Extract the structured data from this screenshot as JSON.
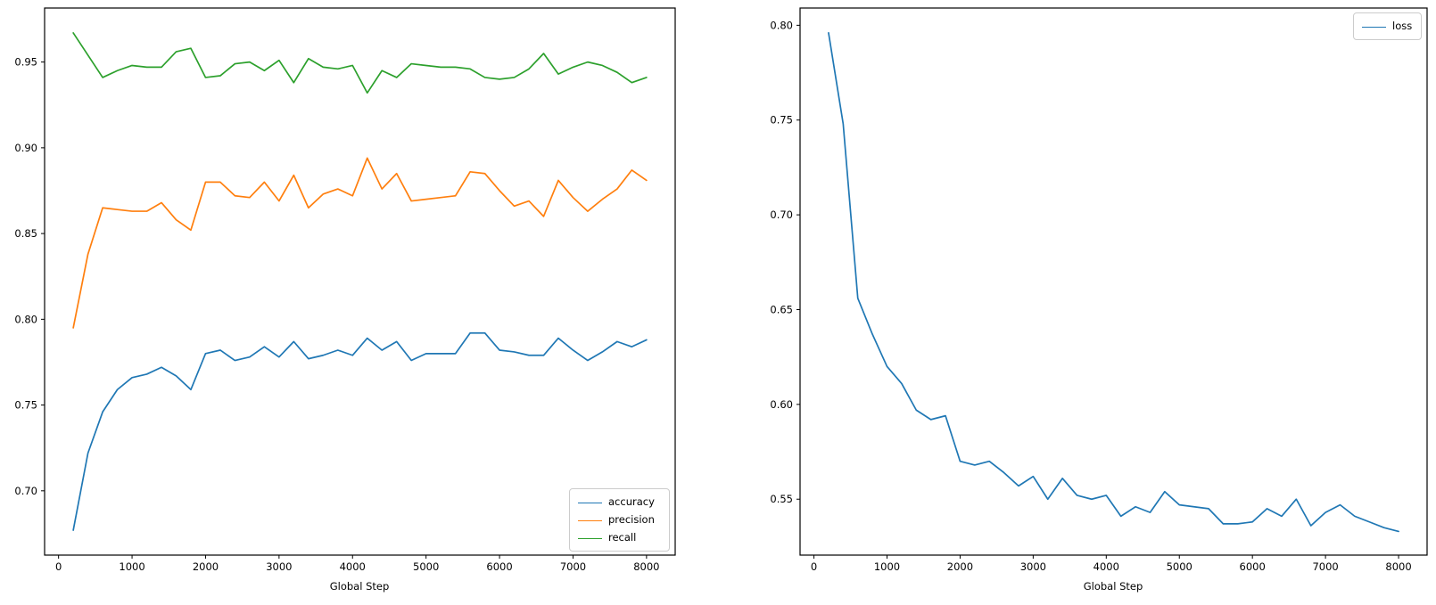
{
  "chart_data": [
    {
      "id": "metrics",
      "type": "line",
      "title": "",
      "xlabel": "Global Step",
      "ylabel": "",
      "grid": false,
      "legend_position": "lower-right",
      "xlim": [
        -190,
        8390
      ],
      "ylim": [
        0.6625,
        0.9815
      ],
      "x_ticks": [
        0,
        1000,
        2000,
        3000,
        4000,
        5000,
        6000,
        7000,
        8000
      ],
      "x_tick_labels": [
        "0",
        "1000",
        "2000",
        "3000",
        "4000",
        "5000",
        "6000",
        "7000",
        "8000"
      ],
      "y_ticks": [
        0.7,
        0.75,
        0.8,
        0.85,
        0.9,
        0.95
      ],
      "y_tick_labels": [
        "0.70",
        "0.75",
        "0.80",
        "0.85",
        "0.90",
        "0.95"
      ],
      "x": [
        200,
        400,
        600,
        800,
        1000,
        1200,
        1400,
        1600,
        1800,
        2000,
        2200,
        2400,
        2600,
        2800,
        3000,
        3200,
        3400,
        3600,
        3800,
        4000,
        4200,
        4400,
        4600,
        4800,
        5000,
        5200,
        5400,
        5600,
        5800,
        6000,
        6200,
        6400,
        6600,
        6800,
        7000,
        7200,
        7400,
        7600,
        7800,
        8000
      ],
      "series": [
        {
          "name": "accuracy",
          "color": "#1f77b4",
          "values": [
            0.677,
            0.722,
            0.746,
            0.759,
            0.766,
            0.768,
            0.772,
            0.767,
            0.759,
            0.78,
            0.782,
            0.776,
            0.778,
            0.784,
            0.778,
            0.787,
            0.777,
            0.779,
            0.782,
            0.779,
            0.789,
            0.782,
            0.787,
            0.776,
            0.78,
            0.78,
            0.78,
            0.792,
            0.792,
            0.782,
            0.781,
            0.779,
            0.779,
            0.789,
            0.782,
            0.776,
            0.781,
            0.787,
            0.784,
            0.788
          ]
        },
        {
          "name": "precision",
          "color": "#ff7f0e",
          "values": [
            0.795,
            0.838,
            0.865,
            0.864,
            0.863,
            0.863,
            0.868,
            0.858,
            0.852,
            0.88,
            0.88,
            0.872,
            0.871,
            0.88,
            0.869,
            0.884,
            0.865,
            0.873,
            0.876,
            0.872,
            0.894,
            0.876,
            0.885,
            0.869,
            0.87,
            0.871,
            0.872,
            0.886,
            0.885,
            0.875,
            0.866,
            0.869,
            0.86,
            0.881,
            0.871,
            0.863,
            0.87,
            0.876,
            0.887,
            0.881
          ]
        },
        {
          "name": "recall",
          "color": "#2ca02c",
          "values": [
            0.967,
            0.954,
            0.941,
            0.945,
            0.948,
            0.947,
            0.947,
            0.956,
            0.958,
            0.941,
            0.942,
            0.949,
            0.95,
            0.945,
            0.951,
            0.938,
            0.952,
            0.947,
            0.946,
            0.948,
            0.932,
            0.945,
            0.941,
            0.949,
            0.948,
            0.947,
            0.947,
            0.946,
            0.941,
            0.94,
            0.941,
            0.946,
            0.955,
            0.943,
            0.947,
            0.95,
            0.948,
            0.944,
            0.938,
            0.941
          ]
        }
      ]
    },
    {
      "id": "loss",
      "type": "line",
      "title": "",
      "xlabel": "Global Step",
      "ylabel": "",
      "grid": false,
      "legend_position": "upper-right",
      "xlim": [
        -190,
        8390
      ],
      "ylim": [
        0.5205,
        0.8091
      ],
      "x_ticks": [
        0,
        1000,
        2000,
        3000,
        4000,
        5000,
        6000,
        7000,
        8000
      ],
      "x_tick_labels": [
        "0",
        "1000",
        "2000",
        "3000",
        "4000",
        "5000",
        "6000",
        "7000",
        "8000"
      ],
      "y_ticks": [
        0.55,
        0.6,
        0.65,
        0.7,
        0.75,
        0.8
      ],
      "y_tick_labels": [
        "0.55",
        "0.60",
        "0.65",
        "0.70",
        "0.75",
        "0.80"
      ],
      "x": [
        200,
        400,
        600,
        800,
        1000,
        1200,
        1400,
        1600,
        1800,
        2000,
        2200,
        2400,
        2600,
        2800,
        3000,
        3200,
        3400,
        3600,
        3800,
        4000,
        4200,
        4400,
        4600,
        4800,
        5000,
        5200,
        5400,
        5600,
        5800,
        6000,
        6200,
        6400,
        6600,
        6800,
        7000,
        7200,
        7400,
        7600,
        7800,
        8000
      ],
      "series": [
        {
          "name": "loss",
          "color": "#1f77b4",
          "values": [
            0.796,
            0.748,
            0.656,
            0.637,
            0.62,
            0.611,
            0.597,
            0.592,
            0.594,
            0.57,
            0.568,
            0.57,
            0.564,
            0.557,
            0.562,
            0.55,
            0.561,
            0.552,
            0.55,
            0.552,
            0.541,
            0.546,
            0.543,
            0.554,
            0.547,
            0.546,
            0.545,
            0.537,
            0.537,
            0.538,
            0.545,
            0.541,
            0.55,
            0.536,
            0.543,
            0.547,
            0.541,
            0.538,
            0.535,
            0.533
          ]
        }
      ]
    }
  ]
}
